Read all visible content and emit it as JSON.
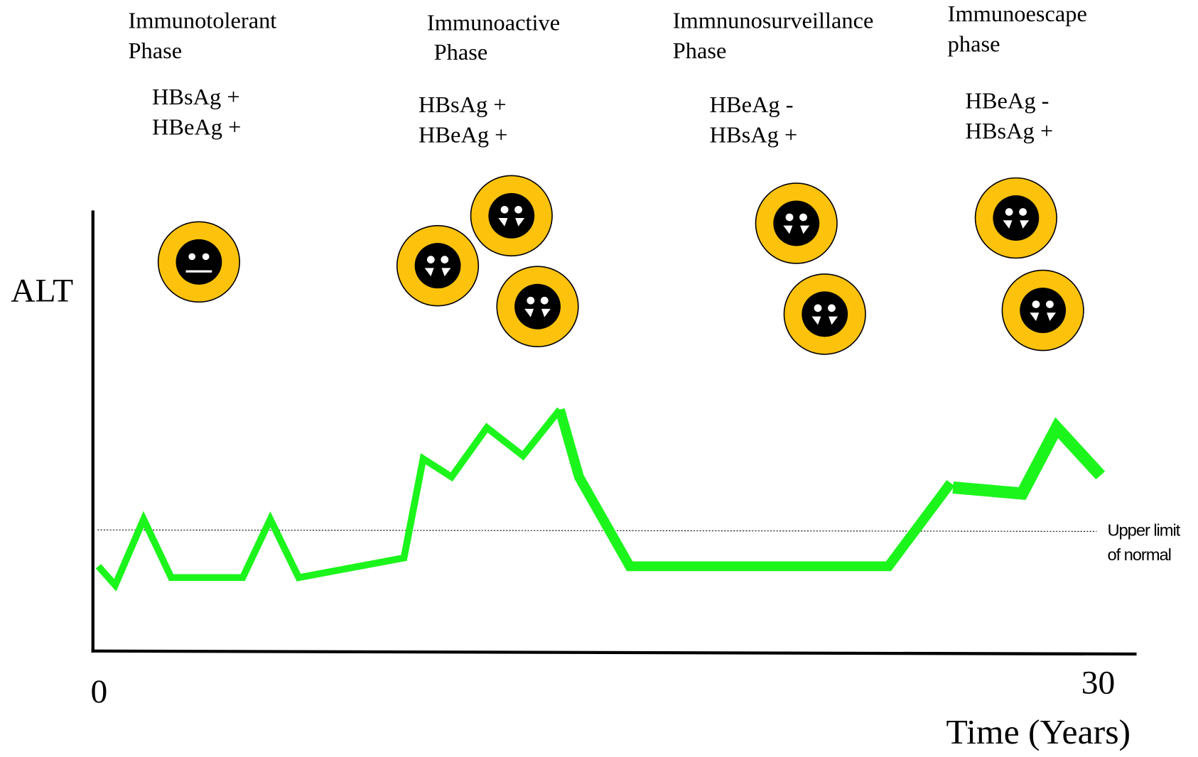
{
  "axis": {
    "y_label": "ALT",
    "x_start": "0",
    "x_end": "30",
    "x_label": "Time (Years)"
  },
  "reference": {
    "label_lines": [
      "Upper limit",
      "of normal"
    ]
  },
  "phases": [
    {
      "title_lines": [
        "Immunotolerant",
        "Phase"
      ],
      "marker_lines": [
        "HBsAg +",
        "HBeAg +"
      ]
    },
    {
      "title_lines": [
        "Immunoactive",
        "Phase"
      ],
      "marker_lines": [
        "HBsAg +",
        "HBeAg +"
      ]
    },
    {
      "title_lines": [
        "Immnunosurveillance",
        "Phase"
      ],
      "marker_lines": [
        "HBeAg -",
        "HBsAg +"
      ]
    },
    {
      "title_lines": [
        "Immunoescape",
        "phase"
      ],
      "marker_lines": [
        "HBeAg -",
        "HBsAg +"
      ]
    }
  ]
}
